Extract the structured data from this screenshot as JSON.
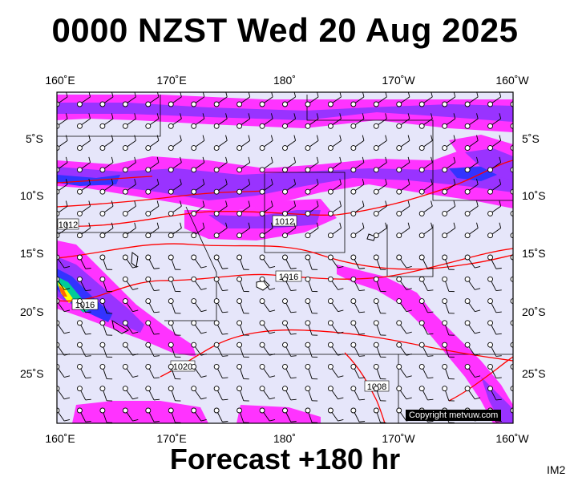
{
  "header": {
    "title": "0000 NZST Wed 20 Aug 2025"
  },
  "footer": {
    "subtitle": "Forecast +180 hr",
    "tag": "IM2",
    "copyright": "Copyright metvuw.com"
  },
  "axes": {
    "lon_labels": [
      "160˚E",
      "170˚E",
      "180˚",
      "170˚W",
      "160˚W"
    ],
    "lat_labels": [
      "5˚S",
      "10˚S",
      "15˚S",
      "20˚S",
      "25˚S"
    ]
  },
  "isobars": {
    "color": "#ff0000",
    "labels": [
      "1012",
      "1012",
      "1016",
      "1016",
      "1020",
      "1008"
    ]
  },
  "colors": {
    "ocean": "#e6e6fa",
    "rain_light": "#ff33ff",
    "rain_moderate": "#9933ff",
    "rain_heavy": "#3333ff",
    "rain_extreme": "#00cc99",
    "wind_barb": "#000000"
  }
}
